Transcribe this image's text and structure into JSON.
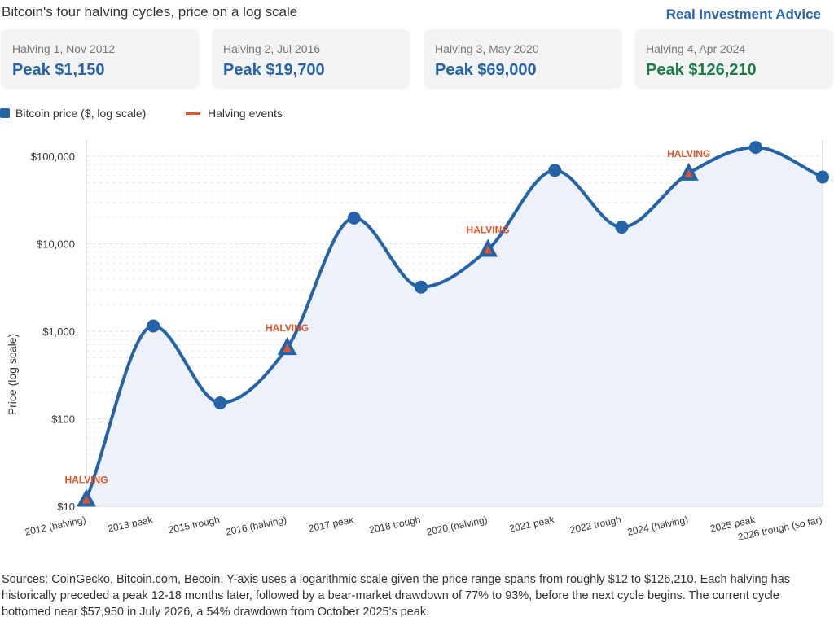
{
  "header": {
    "title": "Bitcoin's four halving cycles, price on a log scale",
    "brand": "Real Investment Advice"
  },
  "cards": [
    {
      "label": "Halving 1, Nov 2012",
      "value": "Peak $1,150",
      "color": "#2563a8"
    },
    {
      "label": "Halving 2, Jul 2016",
      "value": "Peak $19,700",
      "color": "#2563a8"
    },
    {
      "label": "Halving 3, May 2020",
      "value": "Peak $69,000",
      "color": "#2563a8"
    },
    {
      "label": "Halving 4, Apr 2024",
      "value": "Peak $126,210",
      "color": "#1e7b4a"
    }
  ],
  "legend": {
    "price": "Bitcoin price ($, log scale)",
    "halving": "Halving events"
  },
  "colors": {
    "line": "#2563a8",
    "fill": "#eaf0fa",
    "halving": "#e0552b",
    "grid": "#dddddd"
  },
  "chart_data": {
    "type": "line",
    "ylabel": "Price (log scale)",
    "yscale": "log",
    "ylim": [
      10,
      100000
    ],
    "yticks": [
      {
        "value": 10,
        "label": "$10"
      },
      {
        "value": 100,
        "label": "$100"
      },
      {
        "value": 1000,
        "label": "$1,000"
      },
      {
        "value": 10000,
        "label": "$10,000"
      },
      {
        "value": 100000,
        "label": "$100,000"
      }
    ],
    "categories": [
      "2012 (halving)",
      "2013 peak",
      "2015 trough",
      "2016 (halving)",
      "2017 peak",
      "2018 trough",
      "2020 (halving)",
      "2021 peak",
      "2022 trough",
      "2024 (halving)",
      "2025 peak",
      "2026 trough (so far)"
    ],
    "series": [
      {
        "name": "Bitcoin price ($, log scale)",
        "values": [
          12,
          1150,
          152,
          650,
          19700,
          3200,
          8600,
          69000,
          15500,
          64000,
          126210,
          57950
        ]
      }
    ],
    "halving_indices": [
      0,
      3,
      6,
      9
    ],
    "halving_label": "HALVING",
    "grid": true,
    "legend_position": "top-left"
  },
  "footer": {
    "sources": "Sources: CoinGecko, Bitcoin.com, Becoin. Y-axis uses a logarithmic scale given the price range spans from roughly $12 to $126,210. Each halving has historically preceded a peak 12-18 months later, followed by a bear-market drawdown of 77% to 93%, before the next cycle begins. The current cycle bottomed near $57,950 in July 2026, a 54% drawdown from October 2025's peak."
  }
}
